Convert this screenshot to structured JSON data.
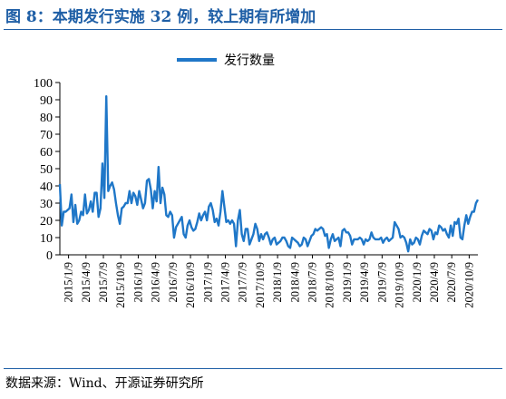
{
  "title": "图 8：本期发行实施 32 例，较上期有所增加",
  "source": "数据来源：Wind、开源证券研究所",
  "chart_data": {
    "type": "line",
    "legend": {
      "position": "top-center"
    },
    "ylim": [
      0,
      100
    ],
    "yticks": [
      0,
      10,
      20,
      30,
      40,
      50,
      60,
      70,
      80,
      90,
      100
    ],
    "x_tick_labels": [
      "2015/1/9",
      "2015/4/9",
      "2015/7/9",
      "2015/10/9",
      "2016/1/9",
      "2016/4/9",
      "2016/7/9",
      "2016/10/9",
      "2017/1/9",
      "2017/4/9",
      "2017/7/9",
      "2017/10/9",
      "2018/1/9",
      "2018/4/9",
      "2018/7/9",
      "2018/10/9",
      "2019/1/9",
      "2019/4/9",
      "2019/7/9",
      "2019/10/9",
      "2020/1/9",
      "2020/4/9",
      "2020/7/9",
      "2020/10/9"
    ],
    "color": "#1f77c8",
    "series": [
      {
        "name": "发行数量",
        "values": [
          41,
          17,
          25,
          25,
          26,
          27,
          35,
          19,
          29,
          18,
          20,
          25,
          23,
          35,
          24,
          26,
          31,
          25,
          36,
          36,
          22,
          27,
          53,
          33,
          92,
          37,
          40,
          42,
          38,
          30,
          23,
          18,
          27,
          28,
          30,
          30,
          37,
          30,
          36,
          34,
          29,
          37,
          32,
          27,
          30,
          43,
          44,
          38,
          27,
          37,
          31,
          51,
          30,
          39,
          35,
          23,
          22,
          25,
          23,
          10,
          16,
          18,
          20,
          22,
          12,
          10,
          17,
          20,
          16,
          14,
          15,
          19,
          24,
          20,
          23,
          25,
          20,
          28,
          30,
          26,
          19,
          21,
          17,
          25,
          37,
          28,
          19,
          20,
          18,
          20,
          18,
          5,
          20,
          26,
          12,
          8,
          15,
          15,
          6,
          9,
          12,
          18,
          15,
          8,
          12,
          9,
          12,
          13,
          10,
          6,
          9,
          10,
          6,
          7,
          8,
          10,
          10,
          8,
          5,
          4,
          10,
          9,
          8,
          7,
          5,
          6,
          10,
          9,
          5,
          8,
          11,
          12,
          15,
          14,
          15,
          16,
          15,
          11,
          12,
          4,
          9,
          12,
          8,
          9,
          10,
          5,
          14,
          15,
          13,
          13,
          11,
          6,
          9,
          9,
          9,
          10,
          9,
          6,
          9,
          8,
          9,
          13,
          10,
          9,
          9,
          9,
          10,
          7,
          9,
          10,
          8,
          9,
          10,
          19,
          17,
          15,
          10,
          11,
          10,
          7,
          2,
          9,
          6,
          7,
          10,
          9,
          6,
          11,
          14,
          13,
          12,
          15,
          14,
          9,
          13,
          12,
          17,
          16,
          14,
          15,
          12,
          10,
          17,
          11,
          19,
          18,
          21,
          10,
          9,
          17,
          23,
          18,
          22,
          25,
          25,
          30,
          32
        ]
      }
    ]
  }
}
